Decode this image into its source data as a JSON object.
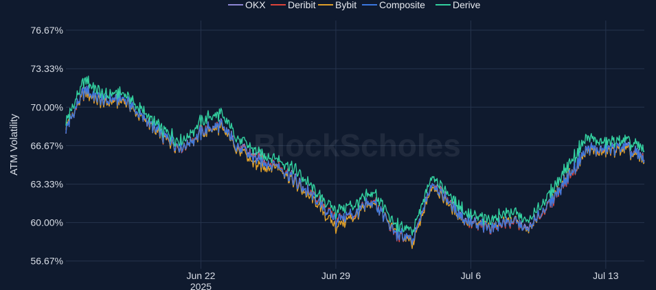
{
  "watermark": "BlockScholes",
  "chart_data": {
    "type": "line",
    "title": "",
    "xlabel": "",
    "ylabel": "ATM Volatility",
    "legend_position": "top-center",
    "grid": true,
    "background": "#0f1a2e",
    "ylim": [
      56.0,
      77.5
    ],
    "y_ticks": [
      56.67,
      60.0,
      63.33,
      66.67,
      70.0,
      73.33,
      76.67
    ],
    "y_tick_labels": [
      "56.67%",
      "60.00%",
      "63.33%",
      "66.67%",
      "70.00%",
      "73.33%",
      "76.67%"
    ],
    "xlim": [
      "2025-06-15",
      "2025-07-15"
    ],
    "x_ticks": [
      "2025-06-22",
      "2025-06-29",
      "2025-07-06",
      "2025-07-13"
    ],
    "x_tick_labels": [
      "Jun 22",
      "Jun 29",
      "Jul 6",
      "Jul 13"
    ],
    "x_tick_sublabel": {
      "under": "Jun 22",
      "text": "2025"
    },
    "x": [
      "2025-06-15",
      "2025-06-16",
      "2025-06-17",
      "2025-06-18",
      "2025-06-19",
      "2025-06-20",
      "2025-06-21",
      "2025-06-22",
      "2025-06-23",
      "2025-06-24",
      "2025-06-25",
      "2025-06-26",
      "2025-06-27",
      "2025-06-28",
      "2025-06-29",
      "2025-06-30",
      "2025-07-01",
      "2025-07-02",
      "2025-07-03",
      "2025-07-04",
      "2025-07-05",
      "2025-07-06",
      "2025-07-07",
      "2025-07-08",
      "2025-07-09",
      "2025-07-10",
      "2025-07-11",
      "2025-07-12",
      "2025-07-13",
      "2025-07-14",
      "2025-07-15"
    ],
    "series": [
      {
        "name": "OKX",
        "color": "#8e87d6",
        "values": [
          68.2,
          71.5,
          70.5,
          70.8,
          69.0,
          67.5,
          66.5,
          67.8,
          68.5,
          66.5,
          65.5,
          65.0,
          63.5,
          62.0,
          60.2,
          60.8,
          61.8,
          59.2,
          58.4,
          63.6,
          61.5,
          60.0,
          59.6,
          60.2,
          59.5,
          61.5,
          63.8,
          66.4,
          66.2,
          66.6,
          65.4
        ]
      },
      {
        "name": "Deribit",
        "color": "#e0443a",
        "values": [
          68.3,
          71.4,
          70.4,
          70.7,
          69.1,
          67.4,
          66.4,
          67.9,
          68.4,
          66.4,
          65.4,
          65.1,
          63.4,
          62.1,
          60.3,
          60.7,
          61.9,
          59.1,
          58.3,
          63.5,
          61.4,
          59.8,
          59.5,
          60.1,
          59.4,
          61.4,
          63.7,
          66.3,
          66.1,
          66.5,
          65.3
        ]
      },
      {
        "name": "Bybit",
        "color": "#e0a02a",
        "values": [
          68.4,
          71.3,
          70.3,
          70.6,
          69.0,
          67.3,
          66.5,
          67.7,
          68.3,
          66.2,
          64.8,
          64.9,
          63.2,
          61.7,
          59.6,
          60.6,
          61.7,
          59.4,
          58.1,
          63.3,
          61.2,
          59.9,
          59.7,
          60.3,
          59.3,
          61.6,
          63.9,
          66.2,
          66.0,
          66.4,
          65.2
        ]
      },
      {
        "name": "Composite",
        "color": "#3b78e0",
        "values": [
          68.2,
          71.5,
          70.5,
          70.8,
          69.1,
          67.5,
          66.5,
          67.8,
          68.5,
          66.4,
          65.3,
          65.0,
          63.4,
          62.0,
          60.2,
          60.8,
          61.8,
          59.2,
          58.4,
          63.5,
          61.4,
          59.9,
          59.6,
          60.2,
          59.4,
          61.5,
          63.8,
          66.4,
          66.2,
          66.6,
          65.3
        ]
      },
      {
        "name": "Derive",
        "color": "#33d1a0",
        "values": [
          68.8,
          72.4,
          71.0,
          71.3,
          69.6,
          68.0,
          67.0,
          68.8,
          69.5,
          67.2,
          66.0,
          65.6,
          64.4,
          62.6,
          61.0,
          61.6,
          62.6,
          59.9,
          59.2,
          64.2,
          62.1,
          60.6,
          60.3,
          61.0,
          60.1,
          62.3,
          64.8,
          67.4,
          66.8,
          67.2,
          66.2
        ]
      }
    ]
  }
}
